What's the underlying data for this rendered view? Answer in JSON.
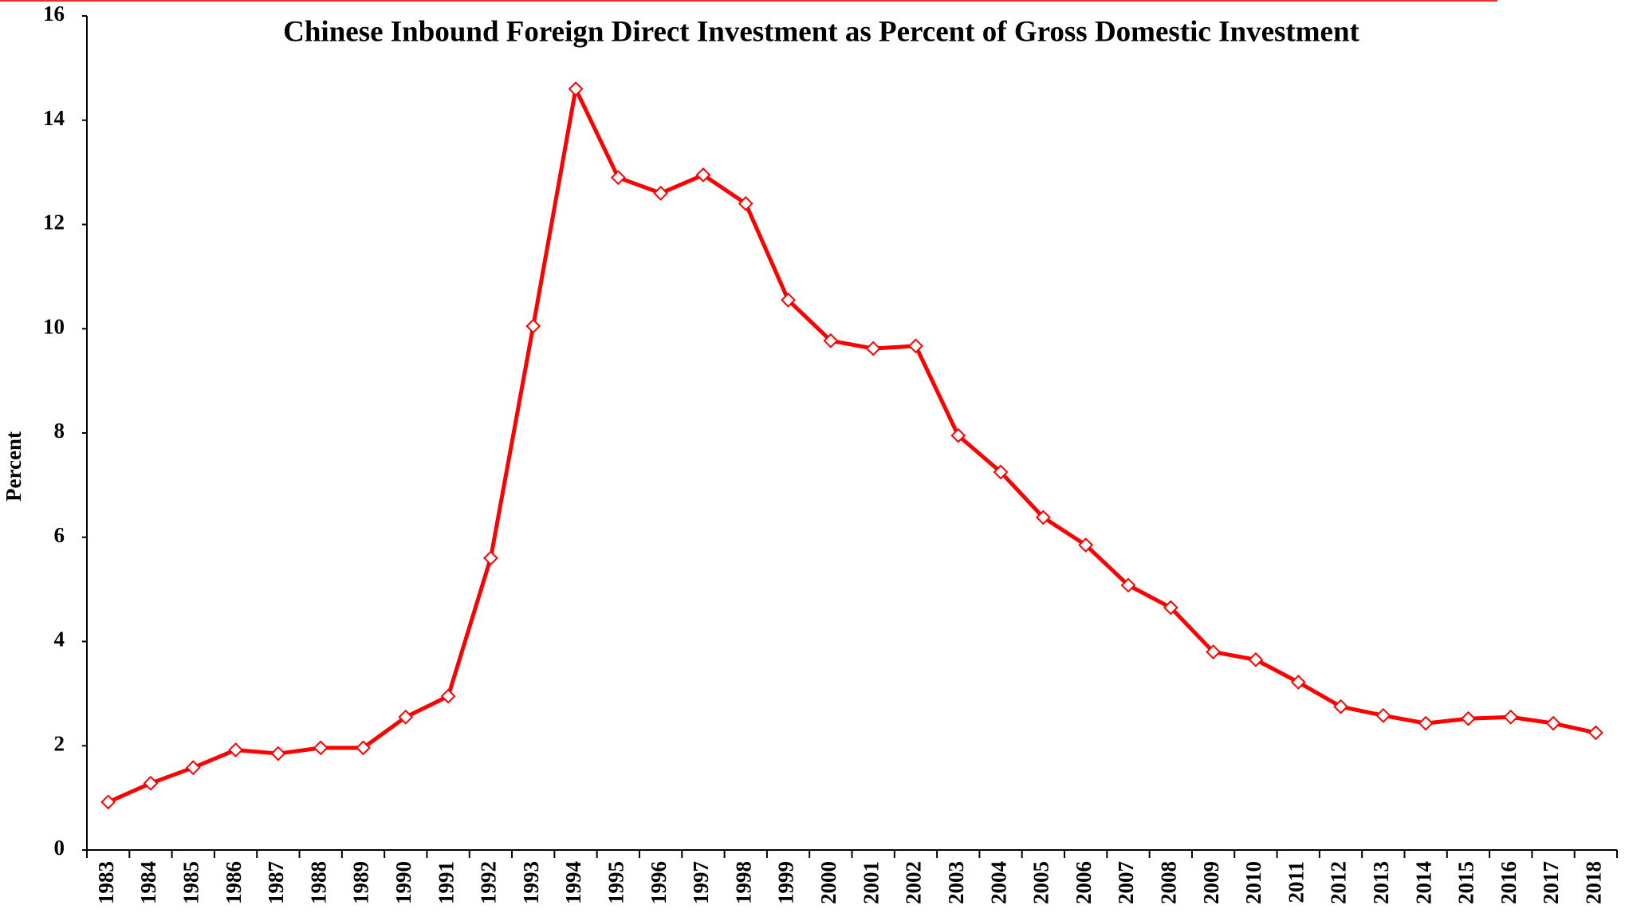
{
  "chart_data": {
    "type": "line",
    "title": "Chinese Inbound Foreign Direct Investment as Percent of Gross Domestic Investment",
    "y_label": "Percent",
    "categories": [
      "1983",
      "1984",
      "1985",
      "1986",
      "1987",
      "1988",
      "1989",
      "1990",
      "1991",
      "1992",
      "1993",
      "1994",
      "1995",
      "1996",
      "1997",
      "1998",
      "1999",
      "2000",
      "2001",
      "2002",
      "2003",
      "2004",
      "2005",
      "2006",
      "2007",
      "2008",
      "2009",
      "2010",
      "2011",
      "2012",
      "2013",
      "2014",
      "2015",
      "2016",
      "2017",
      "2018"
    ],
    "series": [
      {
        "color": "#ff0000",
        "values": [
          0.92,
          1.28,
          1.58,
          1.92,
          1.85,
          1.96,
          1.96,
          2.55,
          2.95,
          5.6,
          10.05,
          14.6,
          12.9,
          12.6,
          12.95,
          12.4,
          10.55,
          9.77,
          9.62,
          9.67,
          7.95,
          7.25,
          6.38,
          5.85,
          5.08,
          4.65,
          3.8,
          3.65,
          3.22,
          2.75,
          2.58,
          2.43,
          2.52,
          2.55,
          2.43,
          2.25
        ]
      }
    ],
    "ylim": [
      0,
      16
    ],
    "yticks": [
      0,
      2,
      4,
      6,
      8,
      10,
      12,
      14,
      16
    ]
  }
}
